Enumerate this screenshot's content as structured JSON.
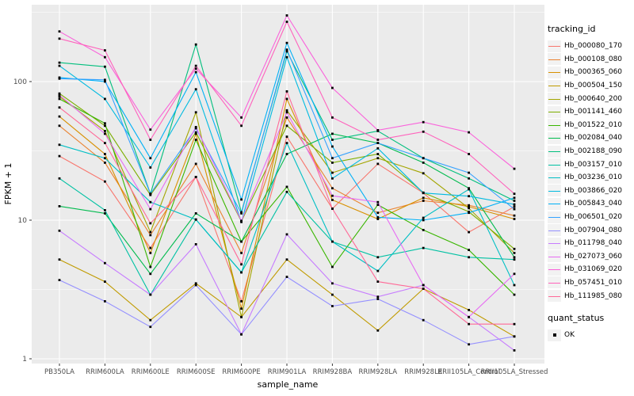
{
  "colors": {
    "panel_bg": "#EBEBEB",
    "grid": "#FFFFFF",
    "tick_text": "#4D4D4D",
    "axis_title": "#000000",
    "point": "#000000",
    "legend_key_bg": "#F2F2F2"
  },
  "legend": {
    "tracking_title": "tracking_id",
    "quant_title": "quant_status",
    "quant_items": [
      {
        "label": "OK",
        "marker": "black-square"
      }
    ]
  },
  "chart_data": {
    "type": "line",
    "title": "",
    "xlabel": "sample_name",
    "ylabel": "FPKM + 1",
    "y_scale": "log10",
    "y_ticks": [
      1,
      10,
      100
    ],
    "y_tick_labels": [
      "1",
      "10",
      "100"
    ],
    "y_minor_ticks": [
      3.162,
      31.62,
      316.2
    ],
    "ylim": [
      1,
      350
    ],
    "grid": true,
    "legend_position": "right",
    "point_shape": "black-square",
    "categories": [
      "PB350LA",
      "RRIM600LA",
      "RRIM600LE",
      "RRIM600SE",
      "RRIM600PE",
      "RRIM901LA",
      "RRIM928BA",
      "RRIM928LA",
      "RRIM928LE",
      "RRII105LA_Control",
      "RRII105LA_Stressed"
    ],
    "series": [
      {
        "name": "Hb_000080_170",
        "color": "#F8766D",
        "values": [
          29,
          19,
          6.3,
          20.5,
          2.6,
          40,
          12.1,
          25.5,
          15.7,
          8.2,
          12.5
        ]
      },
      {
        "name": "Hb_000108_080",
        "color": "#EA8331",
        "values": [
          48,
          26,
          7.8,
          25.5,
          5.8,
          55,
          17,
          11.3,
          13.8,
          12.8,
          10.8
        ]
      },
      {
        "name": "Hb_000365_060",
        "color": "#D89000",
        "values": [
          56,
          30,
          5.8,
          42,
          2.3,
          75,
          14,
          10.2,
          14.5,
          12.5,
          10.2
        ]
      },
      {
        "name": "Hb_000504_150",
        "color": "#C09B00",
        "values": [
          5.2,
          3.6,
          1.9,
          3.5,
          2.0,
          5.2,
          2.9,
          1.6,
          3.2,
          2.25,
          1.45
        ]
      },
      {
        "name": "Hb_000640_200",
        "color": "#A3A500",
        "values": [
          78,
          44,
          8.2,
          60,
          2.0,
          62,
          22,
          28,
          21.8,
          12.2,
          5.8
        ]
      },
      {
        "name": "Hb_001141_460",
        "color": "#7CAE00",
        "values": [
          82,
          48,
          15.2,
          43,
          9.8,
          48,
          26,
          30,
          15.8,
          11.5,
          6.2
        ]
      },
      {
        "name": "Hb_001522_010",
        "color": "#39B600",
        "values": [
          75,
          50,
          4.6,
          38,
          7.0,
          17.4,
          4.6,
          12.9,
          8.5,
          6.1,
          2.9
        ]
      },
      {
        "name": "Hb_002084_040",
        "color": "#00BB4E",
        "values": [
          12.6,
          11.2,
          4.1,
          11.2,
          7.0,
          30,
          42,
          36,
          26,
          17,
          5.4
        ]
      },
      {
        "name": "Hb_002188_090",
        "color": "#00BF7D",
        "values": [
          137,
          128,
          15.5,
          185,
          11.4,
          165,
          38,
          44,
          28,
          20,
          13.8
        ]
      },
      {
        "name": "Hb_003157_010",
        "color": "#00C1A3",
        "values": [
          20,
          11.8,
          2.9,
          10.1,
          4.2,
          16,
          7.0,
          5.4,
          6.3,
          5.4,
          5.2
        ]
      },
      {
        "name": "Hb_003236_010",
        "color": "#00BFC4",
        "values": [
          35,
          28,
          13.5,
          10.1,
          4.2,
          36,
          7.0,
          4.3,
          10.4,
          16.7,
          3.4
        ]
      },
      {
        "name": "Hb_003866_020",
        "color": "#00BAE0",
        "values": [
          130,
          75,
          24,
          88,
          9.7,
          150,
          20,
          33,
          15.7,
          14.9,
          13.0
        ]
      },
      {
        "name": "Hb_005843_040",
        "color": "#00B0F6",
        "values": [
          107,
          100,
          28,
          117,
          14.1,
          190,
          34,
          10.5,
          10.0,
          11.3,
          14.5
        ]
      },
      {
        "name": "Hb_006501_020",
        "color": "#35A2FF",
        "values": [
          105,
          103,
          15.5,
          46,
          11.2,
          170,
          28,
          36,
          28,
          22,
          12.0
        ]
      },
      {
        "name": "Hb_007904_080",
        "color": "#9590FF",
        "values": [
          3.7,
          2.6,
          1.7,
          3.4,
          1.5,
          3.9,
          2.4,
          2.7,
          1.9,
          1.27,
          1.45
        ]
      },
      {
        "name": "Hb_011798_040",
        "color": "#C77CFF",
        "values": [
          8.4,
          4.9,
          2.9,
          6.7,
          1.5,
          7.9,
          3.5,
          2.8,
          3.4,
          2.0,
          1.15
        ]
      },
      {
        "name": "Hb_027073_060",
        "color": "#E76BF3",
        "values": [
          80,
          42,
          12,
          47,
          9.9,
          60,
          15,
          13.5,
          3.4,
          2.0,
          4.1
        ]
      },
      {
        "name": "Hb_031069_020",
        "color": "#FA62DB",
        "values": [
          230,
          150,
          45,
          124,
          55,
          300,
          90,
          44.6,
          51,
          43,
          23.5
        ]
      },
      {
        "name": "Hb_057451_010",
        "color": "#FF62BC",
        "values": [
          204,
          168,
          38,
          130,
          48,
          270,
          55,
          38,
          43.5,
          30,
          15.5
        ]
      },
      {
        "name": "Hb_111985_080",
        "color": "#FF6A98",
        "values": [
          65,
          36,
          9.5,
          20.5,
          4.8,
          85,
          12.1,
          3.6,
          3.2,
          1.78,
          1.78
        ]
      }
    ]
  }
}
